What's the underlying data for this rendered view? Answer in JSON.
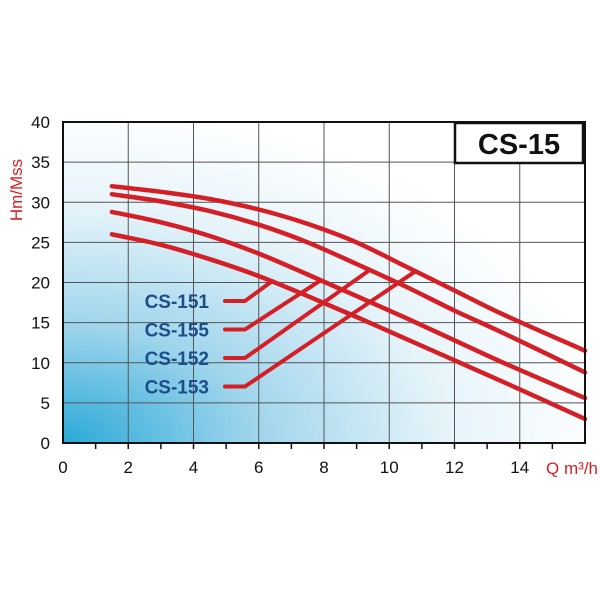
{
  "chart_data": {
    "type": "line",
    "title": "CS-15",
    "xlabel": "Q m³/h",
    "ylabel": "Hm/Mss",
    "xlim": [
      0,
      16
    ],
    "ylim": [
      0,
      40
    ],
    "x_ticks": [
      0,
      2,
      4,
      6,
      8,
      10,
      12,
      14
    ],
    "y_ticks": [
      0,
      5,
      10,
      15,
      20,
      25,
      30,
      35,
      40
    ],
    "grid": true,
    "background": "light blue gradient from bottom-left",
    "series": [
      {
        "name": "CS-153",
        "x": [
          1.5,
          3,
          4.5,
          6,
          7.5,
          9,
          10.5,
          12,
          13.5,
          16
        ],
        "y": [
          32,
          31.3,
          30.4,
          29.1,
          27.3,
          25,
          22,
          19,
          16,
          11.5
        ]
      },
      {
        "name": "CS-152",
        "x": [
          1.5,
          3,
          4.5,
          6,
          7.5,
          9,
          10.5,
          12,
          13.5,
          16
        ],
        "y": [
          31,
          30.1,
          28.9,
          27.2,
          25,
          22.3,
          19.5,
          16.5,
          13.7,
          8.8
        ]
      },
      {
        "name": "CS-155",
        "x": [
          1.5,
          3,
          4.5,
          6,
          7.5,
          9,
          10.5,
          12,
          13.5,
          16
        ],
        "y": [
          28.8,
          27.5,
          25.8,
          23.6,
          21,
          18.3,
          15.6,
          12.8,
          10,
          5.6
        ]
      },
      {
        "name": "CS-151",
        "x": [
          1.5,
          3,
          4.5,
          6,
          7.5,
          9,
          10.5,
          12,
          13.5,
          16
        ],
        "y": [
          26,
          24.7,
          22.9,
          20.8,
          18.3,
          15.7,
          13,
          10.3,
          7.6,
          3
        ]
      }
    ],
    "labels": [
      {
        "text": "CS-151",
        "series": "CS-151",
        "target_x": 6.4
      },
      {
        "text": "CS-155",
        "series": "CS-155",
        "target_x": 7.9
      },
      {
        "text": "CS-152",
        "series": "CS-152",
        "target_x": 9.4
      },
      {
        "text": "CS-153",
        "series": "CS-153",
        "target_x": 10.8
      }
    ],
    "colors": {
      "curve": "#d51f26",
      "label": "#1d4e8a",
      "axis_title": "#d51f26"
    }
  }
}
